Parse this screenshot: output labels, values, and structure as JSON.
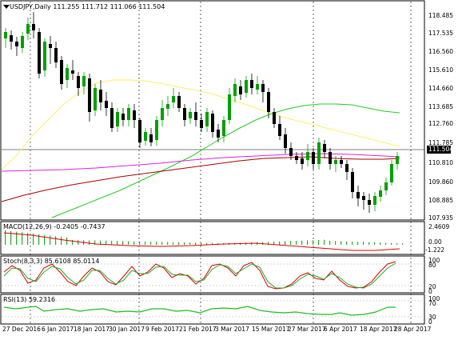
{
  "chart": {
    "symbol_header": "USDJPY,Daily",
    "ohlc": "111.255 111.712 111.066 111.504",
    "current_price": "111.504",
    "price_axis": [
      "118.485",
      "117.535",
      "116.560",
      "115.610",
      "114.660",
      "113.685",
      "112.760",
      "111.785",
      "110.810",
      "109.860",
      "108.885",
      "107.935"
    ],
    "dates": [
      "27 Dec 2016",
      "6 Jan 2017",
      "18 Jan 2017",
      "30 Jan 2017",
      "9 Feb 2017",
      "21 Feb 2017",
      "3 Mar 2017",
      "15 Mar 2017",
      "27 Mar 2017",
      "6 Apr 2017",
      "18 Apr 2017",
      "28 Apr 2017"
    ]
  },
  "macd": {
    "label": "MACD(12,26,9) -0.2405 -0.7437",
    "axis": [
      "2.4609",
      "0.00",
      "-1.222"
    ]
  },
  "stoch": {
    "label": "Stoch(8,3,3) 85.6108 85.0114",
    "axis": [
      "100",
      "80",
      "20",
      "0"
    ]
  },
  "rsi": {
    "label": "RSI(13) 59.2316",
    "axis": [
      "100",
      "70",
      "30",
      "0"
    ]
  },
  "colors": {
    "bull": "#00a000",
    "bear": "#000000",
    "ma_yellow": "#ffee66",
    "ma_green": "#22cc22",
    "ma_magenta": "#dd22dd",
    "ma_red": "#aa0000",
    "stoch_main": "#dd0000",
    "stoch_signal": "#22aa22",
    "rsi": "#22bb22"
  }
}
